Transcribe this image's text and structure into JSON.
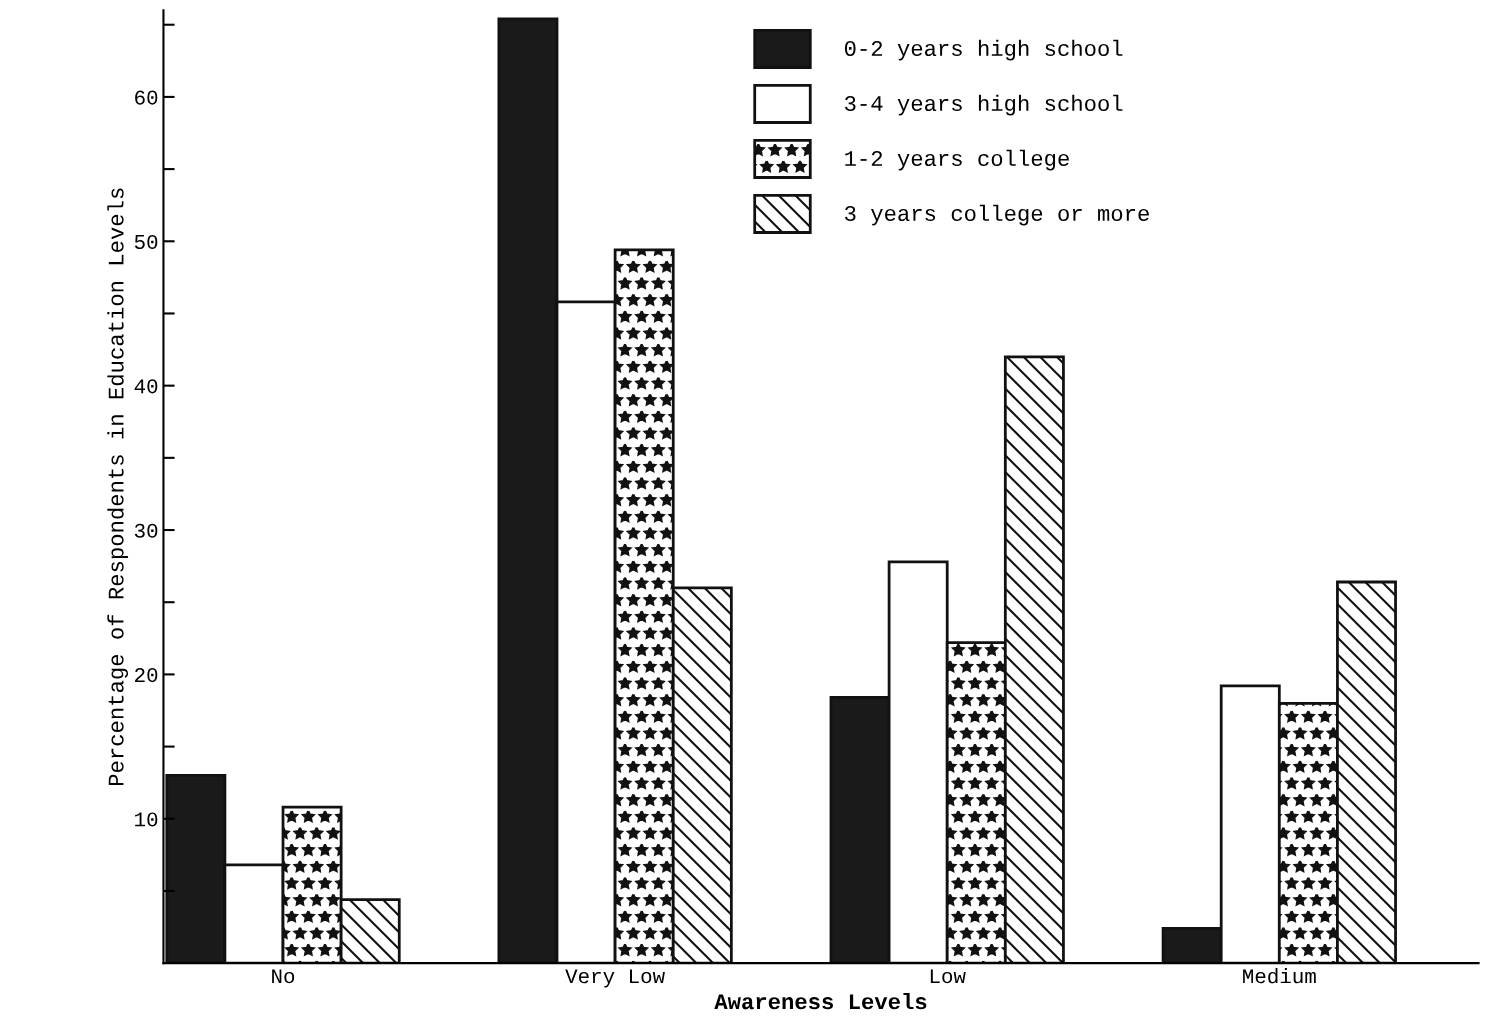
{
  "chart_data": {
    "type": "bar",
    "xlabel": "Awareness Levels",
    "ylabel": "Percentage of Respondents in Education Levels",
    "categories": [
      "No",
      "Very Low",
      "Low",
      "Medium"
    ],
    "series": [
      {
        "name": "0-2 years high school",
        "color": "#1a1a1a",
        "values": [
          13.0,
          65.4,
          18.4,
          2.4
        ]
      },
      {
        "name": "3-4 years high school",
        "color": "#ffffff",
        "values": [
          6.8,
          45.8,
          27.8,
          19.2
        ]
      },
      {
        "name": "1-2 years college",
        "color": "#111111",
        "values": [
          10.8,
          49.4,
          22.2,
          18.0
        ]
      },
      {
        "name": "3 years college or more",
        "color": "#111111",
        "values": [
          4.4,
          26.0,
          42.0,
          26.4
        ]
      }
    ],
    "ylim": [
      0,
      66
    ],
    "yticks": [
      {
        "value": 5,
        "label": null
      },
      10,
      {
        "value": 15,
        "label": null
      },
      20,
      {
        "value": 25,
        "label": null
      },
      30,
      {
        "value": 35,
        "label": null
      },
      40,
      {
        "value": 45,
        "label": null
      },
      50,
      {
        "value": 55,
        "label": null
      },
      60,
      {
        "value": 65,
        "label": null
      }
    ],
    "legend": "top",
    "grid": false
  }
}
